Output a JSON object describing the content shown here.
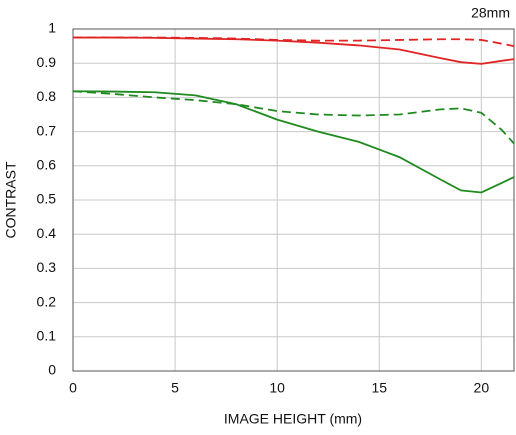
{
  "chart_data": {
    "type": "line",
    "title": "28mm",
    "x_label": "IMAGE HEIGHT (mm)",
    "y_label": "CONTRAST",
    "x": [
      0,
      2,
      4,
      6,
      8,
      10,
      12,
      14,
      16,
      18,
      19,
      20,
      21,
      21.6
    ],
    "series": [
      {
        "color": "#e02424",
        "dashed": false,
        "values": [
          0.975,
          0.975,
          0.974,
          0.972,
          0.97,
          0.966,
          0.96,
          0.952,
          0.94,
          0.915,
          0.903,
          0.898,
          0.907,
          0.912
        ]
      },
      {
        "color": "#e02424",
        "dashed": true,
        "values": [
          0.975,
          0.975,
          0.975,
          0.974,
          0.972,
          0.968,
          0.966,
          0.966,
          0.968,
          0.97,
          0.97,
          0.968,
          0.957,
          0.95
        ]
      },
      {
        "color": "#1f8a1f",
        "dashed": false,
        "values": [
          0.818,
          0.817,
          0.815,
          0.806,
          0.78,
          0.735,
          0.7,
          0.67,
          0.625,
          0.56,
          0.528,
          0.522,
          0.55,
          0.567
        ]
      },
      {
        "color": "#1f8a1f",
        "dashed": true,
        "values": [
          0.818,
          0.81,
          0.8,
          0.792,
          0.78,
          0.76,
          0.75,
          0.747,
          0.75,
          0.765,
          0.768,
          0.755,
          0.705,
          0.665
        ]
      }
    ],
    "xlim": [
      0,
      21.6
    ],
    "ylim": [
      0,
      1
    ],
    "xticks": [
      0,
      5,
      10,
      15,
      20
    ],
    "yticks": [
      0,
      0.1,
      0.2,
      0.3,
      0.4,
      0.5,
      0.6,
      0.7,
      0.8,
      0.9,
      1
    ],
    "grid": true
  }
}
